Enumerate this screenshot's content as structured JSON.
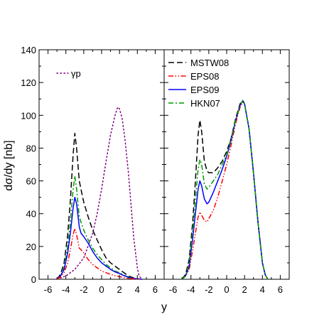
{
  "chart_data": [
    {
      "type": "line",
      "panel": "left",
      "xlabel": "",
      "ylabel": "dσ/dy [nb]",
      "xlim": [
        -7,
        7
      ],
      "ylim": [
        0,
        140
      ],
      "xticks": [
        "-6",
        "-4",
        "-2",
        "0",
        "2",
        "4",
        "6"
      ],
      "yticks": [
        "0",
        "20",
        "40",
        "60",
        "80",
        "100",
        "120",
        "140"
      ],
      "grid": false,
      "legend_position": "top-left",
      "series": [
        {
          "name": "γp",
          "color": "#800080",
          "dash": "dotted",
          "in_legend": true,
          "x": [
            -5.0,
            -4.0,
            -3.0,
            -2.0,
            -1.0,
            -0.5,
            0.0,
            0.5,
            1.0,
            1.5,
            1.8,
            2.0,
            2.3,
            2.6,
            3.0,
            3.3,
            3.6,
            4.0,
            4.2,
            4.5
          ],
          "y": [
            0,
            2,
            6,
            13,
            28,
            40,
            55,
            72,
            88,
            100,
            105,
            104,
            98,
            86,
            65,
            45,
            25,
            7,
            2,
            0
          ]
        },
        {
          "name": "MSTW08",
          "color": "#000000",
          "dash": "dashed",
          "in_legend": false,
          "x": [
            -5.0,
            -4.6,
            -4.2,
            -3.8,
            -3.5,
            -3.2,
            -3.0,
            -2.8,
            -2.5,
            -2.2,
            -2.0,
            -1.5,
            -1.0,
            -0.5,
            0.0,
            0.5,
            1.0,
            1.5,
            2.0,
            2.5,
            3.0,
            3.5,
            4.0,
            4.5
          ],
          "y": [
            0,
            3,
            10,
            27,
            48,
            75,
            89,
            80,
            60,
            52,
            47,
            38,
            30,
            24,
            18,
            13,
            10,
            8,
            6,
            4,
            2,
            1,
            0.3,
            0
          ]
        },
        {
          "name": "HKN07",
          "color": "#009900",
          "dash": "dash-dot",
          "in_legend": false,
          "x": [
            -5.0,
            -4.6,
            -4.2,
            -3.8,
            -3.5,
            -3.2,
            -3.0,
            -2.8,
            -2.5,
            -2.2,
            -2.0,
            -1.5,
            -1.0,
            -0.5,
            0.0,
            0.5,
            1.0,
            1.5,
            2.0,
            2.5,
            3.0,
            3.5,
            4.0,
            4.5
          ],
          "y": [
            0,
            2,
            7,
            20,
            35,
            54,
            63,
            55,
            38,
            33,
            30,
            24,
            19,
            15,
            12,
            9,
            7,
            5,
            4,
            2.5,
            1.3,
            0.6,
            0.2,
            0
          ]
        },
        {
          "name": "EPS09",
          "color": "#0000ff",
          "dash": "solid",
          "in_legend": false,
          "x": [
            -5.0,
            -4.6,
            -4.2,
            -3.8,
            -3.5,
            -3.2,
            -3.0,
            -2.8,
            -2.5,
            -2.3,
            -2.0,
            -1.5,
            -1.0,
            -0.5,
            0.0,
            0.5,
            1.0,
            1.5,
            2.0,
            2.5,
            3.0,
            3.5,
            4.0,
            4.5
          ],
          "y": [
            0,
            2,
            6,
            16,
            28,
            43,
            50,
            46,
            32,
            28,
            26,
            22,
            17,
            13,
            10,
            8,
            6,
            4.5,
            3.5,
            2.2,
            1.2,
            0.5,
            0.2,
            0
          ]
        },
        {
          "name": "EPS08",
          "color": "#ff0000",
          "dash": "dash-dot-dot",
          "in_legend": false,
          "x": [
            -5.0,
            -4.6,
            -4.2,
            -3.8,
            -3.5,
            -3.2,
            -3.0,
            -2.8,
            -2.5,
            -2.3,
            -2.0,
            -1.5,
            -1.0,
            -0.5,
            0.0,
            0.5,
            1.0,
            1.5,
            2.0,
            2.5,
            3.0,
            3.5,
            4.0,
            4.5
          ],
          "y": [
            0,
            1.5,
            4,
            10,
            18,
            27,
            31,
            27,
            19,
            18,
            16,
            12,
            9,
            7,
            5,
            4,
            3,
            2.2,
            1.6,
            1,
            0.6,
            0.3,
            0.1,
            0
          ]
        }
      ]
    },
    {
      "type": "line",
      "panel": "right",
      "xlabel": "y",
      "ylabel": "",
      "xlim": [
        -7,
        7
      ],
      "ylim": [
        0,
        140
      ],
      "xticks": [
        "-6",
        "-4",
        "-2",
        "0",
        "2",
        "4",
        "6"
      ],
      "grid": false,
      "legend_position": "top-left",
      "series": [
        {
          "name": "MSTW08",
          "color": "#000000",
          "dash": "dashed",
          "in_legend": true,
          "x": [
            -5.0,
            -4.6,
            -4.2,
            -3.8,
            -3.5,
            -3.2,
            -3.0,
            -2.8,
            -2.5,
            -2.2,
            -2.0,
            -1.5,
            -1.0,
            -0.5,
            0.0,
            0.5,
            1.0,
            1.5,
            1.8,
            2.0,
            2.5,
            3.0,
            3.5,
            4.0,
            4.3,
            4.6
          ],
          "y": [
            0,
            3,
            12,
            35,
            60,
            88,
            97,
            90,
            72,
            66,
            65,
            65,
            68,
            72,
            78,
            86,
            98,
            107,
            109,
            107,
            92,
            65,
            35,
            10,
            3,
            0
          ]
        },
        {
          "name": "EPS08",
          "color": "#ff0000",
          "dash": "dash-dot-dot",
          "in_legend": true,
          "x": [
            -5.0,
            -4.6,
            -4.2,
            -3.8,
            -3.5,
            -3.2,
            -3.0,
            -2.8,
            -2.5,
            -2.2,
            -2.0,
            -1.5,
            -1.0,
            -0.5,
            0.0,
            0.5,
            1.0,
            1.5,
            1.8,
            2.0,
            2.5,
            3.0,
            3.5,
            4.0,
            4.3,
            4.6
          ],
          "y": [
            0,
            2,
            6,
            18,
            28,
            38,
            41,
            39,
            36,
            35,
            37,
            42,
            50,
            60,
            70,
            82,
            95,
            105,
            108,
            107,
            92,
            65,
            35,
            10,
            3,
            0
          ]
        },
        {
          "name": "EPS09",
          "color": "#0000ff",
          "dash": "solid",
          "in_legend": true,
          "x": [
            -5.0,
            -4.6,
            -4.2,
            -3.8,
            -3.5,
            -3.2,
            -3.0,
            -2.8,
            -2.5,
            -2.2,
            -2.0,
            -1.5,
            -1.0,
            -0.5,
            0.0,
            0.5,
            1.0,
            1.5,
            1.8,
            2.0,
            2.5,
            3.0,
            3.5,
            4.0,
            4.3,
            4.6
          ],
          "y": [
            0,
            2,
            8,
            25,
            40,
            55,
            60,
            57,
            49,
            46,
            47,
            53,
            60,
            67,
            75,
            85,
            97,
            106,
            109,
            107,
            92,
            65,
            35,
            10,
            3,
            0
          ]
        },
        {
          "name": "HKN07",
          "color": "#009900",
          "dash": "dash-dot",
          "in_legend": true,
          "x": [
            -5.0,
            -4.6,
            -4.2,
            -3.8,
            -3.5,
            -3.2,
            -3.0,
            -2.8,
            -2.5,
            -2.2,
            -2.0,
            -1.5,
            -1.0,
            -0.5,
            0.0,
            0.5,
            1.0,
            1.5,
            1.8,
            2.0,
            2.5,
            3.0,
            3.5,
            4.0,
            4.3,
            4.6
          ],
          "y": [
            0,
            2,
            10,
            30,
            48,
            67,
            73,
            70,
            58,
            55,
            56,
            60,
            64,
            70,
            76,
            86,
            97,
            106,
            109,
            107,
            92,
            65,
            35,
            10,
            3,
            0
          ]
        }
      ]
    }
  ]
}
